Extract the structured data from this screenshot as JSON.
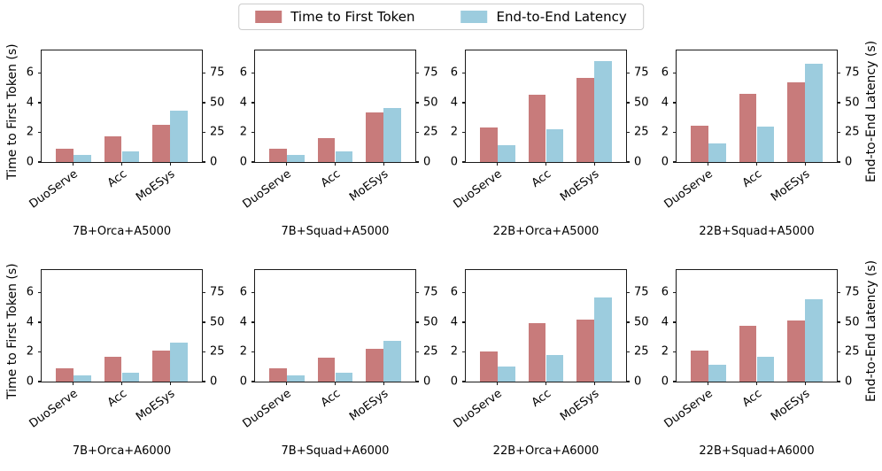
{
  "figure": {
    "legend": [
      {
        "label": "Time to First Token",
        "color": "#c87b7b"
      },
      {
        "label": "End-to-End Latency",
        "color": "#9cccde"
      }
    ],
    "left_axis": {
      "label": "Time to First Token (s)",
      "ticks": [
        0,
        2,
        4,
        6
      ],
      "max": 7.5
    },
    "right_axis": {
      "label": "End-to-End Latency (s)",
      "ticks": [
        0,
        25,
        50,
        75
      ],
      "max": 93.75
    },
    "categories": [
      "DuoServe",
      "Acc",
      "MoESys"
    ]
  },
  "chart_data": [
    {
      "type": "bar",
      "title": "7B+Orca+A5000",
      "categories": [
        "DuoServe",
        "Acc",
        "MoESys"
      ],
      "ylim_left": [
        0,
        7.5
      ],
      "ylim_right": [
        0,
        93.75
      ],
      "series": [
        {
          "name": "Time to First Token",
          "axis": "left",
          "unit": "s",
          "values": [
            0.9,
            1.75,
            2.5
          ]
        },
        {
          "name": "End-to-End Latency",
          "axis": "right",
          "unit": "s",
          "values": [
            5.6,
            9.0,
            43.0
          ]
        }
      ]
    },
    {
      "type": "bar",
      "title": "7B+Squad+A5000",
      "categories": [
        "DuoServe",
        "Acc",
        "MoESys"
      ],
      "ylim_left": [
        0,
        7.5
      ],
      "ylim_right": [
        0,
        93.75
      ],
      "series": [
        {
          "name": "Time to First Token",
          "axis": "left",
          "unit": "s",
          "values": [
            0.88,
            1.63,
            3.35
          ]
        },
        {
          "name": "End-to-End Latency",
          "axis": "right",
          "unit": "s",
          "values": [
            6.0,
            8.8,
            45.5
          ]
        }
      ]
    },
    {
      "type": "bar",
      "title": "22B+Orca+A5000",
      "categories": [
        "DuoServe",
        "Acc",
        "MoESys"
      ],
      "ylim_left": [
        0,
        7.5
      ],
      "ylim_right": [
        0,
        93.75
      ],
      "series": [
        {
          "name": "Time to First Token",
          "axis": "left",
          "unit": "s",
          "values": [
            2.3,
            4.5,
            5.65
          ]
        },
        {
          "name": "End-to-End Latency",
          "axis": "right",
          "unit": "s",
          "values": [
            14.5,
            27.5,
            85.0
          ]
        }
      ]
    },
    {
      "type": "bar",
      "title": "22B+Squad+A5000",
      "categories": [
        "DuoServe",
        "Acc",
        "MoESys"
      ],
      "ylim_left": [
        0,
        7.5
      ],
      "ylim_right": [
        0,
        93.75
      ],
      "series": [
        {
          "name": "Time to First Token",
          "axis": "left",
          "unit": "s",
          "values": [
            2.45,
            4.6,
            5.35
          ]
        },
        {
          "name": "End-to-End Latency",
          "axis": "right",
          "unit": "s",
          "values": [
            15.5,
            29.5,
            82.5
          ]
        }
      ]
    },
    {
      "type": "bar",
      "title": "7B+Orca+A6000",
      "categories": [
        "DuoServe",
        "Acc",
        "MoESys"
      ],
      "ylim_left": [
        0,
        7.5
      ],
      "ylim_right": [
        0,
        93.75
      ],
      "series": [
        {
          "name": "Time to First Token",
          "axis": "left",
          "unit": "s",
          "values": [
            0.88,
            1.65,
            2.1
          ]
        },
        {
          "name": "End-to-End Latency",
          "axis": "right",
          "unit": "s",
          "values": [
            5.4,
            7.8,
            32.8
          ]
        }
      ]
    },
    {
      "type": "bar",
      "title": "7B+Squad+A6000",
      "categories": [
        "DuoServe",
        "Acc",
        "MoESys"
      ],
      "ylim_left": [
        0,
        7.5
      ],
      "ylim_right": [
        0,
        93.75
      ],
      "series": [
        {
          "name": "Time to First Token",
          "axis": "left",
          "unit": "s",
          "values": [
            0.9,
            1.62,
            2.2
          ]
        },
        {
          "name": "End-to-End Latency",
          "axis": "right",
          "unit": "s",
          "values": [
            5.4,
            7.8,
            34.0
          ]
        }
      ]
    },
    {
      "type": "bar",
      "title": "22B+Orca+A6000",
      "categories": [
        "DuoServe",
        "Acc",
        "MoESys"
      ],
      "ylim_left": [
        0,
        7.5
      ],
      "ylim_right": [
        0,
        93.75
      ],
      "series": [
        {
          "name": "Time to First Token",
          "axis": "left",
          "unit": "s",
          "values": [
            2.0,
            3.9,
            4.15
          ]
        },
        {
          "name": "End-to-End Latency",
          "axis": "right",
          "unit": "s",
          "values": [
            12.5,
            22.2,
            70.5
          ]
        }
      ]
    },
    {
      "type": "bar",
      "title": "22B+Squad+A6000",
      "categories": [
        "DuoServe",
        "Acc",
        "MoESys"
      ],
      "ylim_left": [
        0,
        7.5
      ],
      "ylim_right": [
        0,
        93.75
      ],
      "series": [
        {
          "name": "Time to First Token",
          "axis": "left",
          "unit": "s",
          "values": [
            2.1,
            3.78,
            4.1
          ]
        },
        {
          "name": "End-to-End Latency",
          "axis": "right",
          "unit": "s",
          "values": [
            14.4,
            20.6,
            69.5
          ]
        }
      ]
    }
  ]
}
